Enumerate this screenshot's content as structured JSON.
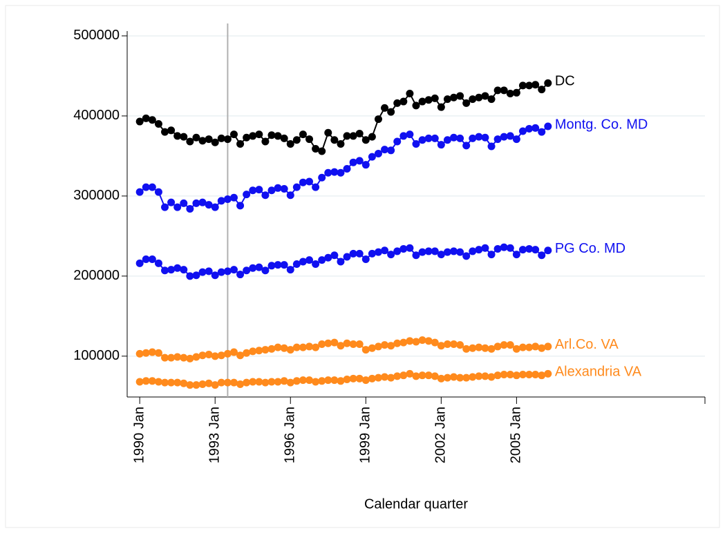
{
  "chart_data": {
    "type": "line",
    "x_title": "Calendar quarter",
    "x": [
      120,
      121,
      122,
      123,
      124,
      125,
      126,
      127,
      128,
      129,
      130,
      131,
      132,
      133,
      134,
      135,
      136,
      137,
      138,
      139,
      140,
      141,
      142,
      143,
      144,
      145,
      146,
      147,
      148,
      149,
      150,
      151,
      152,
      153,
      154,
      155,
      156,
      157,
      158,
      159,
      160,
      161,
      162,
      163,
      164,
      165,
      166,
      167,
      168,
      169,
      170,
      171,
      172,
      173,
      174,
      175,
      176,
      177,
      178,
      179,
      180,
      181,
      182,
      183,
      184,
      185
    ],
    "xlim": [
      118,
      210
    ],
    "xticks": [
      {
        "value": 120,
        "label": "1990 Jan"
      },
      {
        "value": 132,
        "label": "1993 Jan"
      },
      {
        "value": 144,
        "label": "1996 Jan"
      },
      {
        "value": 156,
        "label": "1999 Jan"
      },
      {
        "value": 168,
        "label": "2002 Jan"
      },
      {
        "value": 180,
        "label": "2005 Jan"
      }
    ],
    "ylim": [
      49000,
      506000
    ],
    "yticks": [
      100000,
      200000,
      300000,
      400000,
      500000
    ],
    "grid": true,
    "reference_line_x": 134,
    "reference_line_color": "#b0b0b0",
    "series": [
      {
        "name": "DC",
        "color": "#000000",
        "values": [
          393000,
          397000,
          395000,
          390000,
          380000,
          382000,
          375000,
          374000,
          368000,
          373000,
          369000,
          371000,
          367000,
          372000,
          371000,
          377000,
          365000,
          373000,
          375000,
          377000,
          368000,
          376000,
          375000,
          372000,
          365000,
          370000,
          377000,
          371000,
          359000,
          356000,
          379000,
          370000,
          365000,
          375000,
          375000,
          378000,
          370000,
          374000,
          396000,
          410000,
          405000,
          416000,
          418000,
          428000,
          413000,
          418000,
          420000,
          422000,
          411000,
          421000,
          423000,
          425000,
          416000,
          421000,
          423000,
          425000,
          421000,
          432000,
          432000,
          428000,
          429000,
          438000,
          438000,
          439000,
          433000,
          441000
        ]
      },
      {
        "name": "Montg. Co. MD",
        "color": "#1010f0",
        "values": [
          305000,
          311000,
          311000,
          305000,
          286000,
          292000,
          286000,
          291000,
          284000,
          291000,
          292000,
          289000,
          286000,
          294000,
          296000,
          298000,
          288000,
          302000,
          307000,
          308000,
          301000,
          307000,
          310000,
          309000,
          301000,
          311000,
          317000,
          318000,
          311000,
          323000,
          329000,
          330000,
          329000,
          334000,
          342000,
          344000,
          339000,
          349000,
          353000,
          358000,
          357000,
          368000,
          375000,
          377000,
          365000,
          370000,
          372000,
          372000,
          364000,
          370000,
          373000,
          372000,
          363000,
          372000,
          374000,
          373000,
          362000,
          371000,
          374000,
          375000,
          371000,
          381000,
          384000,
          385000,
          380000,
          387000
        ]
      },
      {
        "name": "PG Co. MD",
        "color": "#1010f0",
        "values": [
          216000,
          221000,
          221000,
          216000,
          207000,
          208000,
          210000,
          208000,
          200000,
          201000,
          205000,
          206000,
          201000,
          205000,
          206000,
          208000,
          202000,
          207000,
          210000,
          211000,
          207000,
          213000,
          214000,
          214000,
          208000,
          215000,
          218000,
          220000,
          215000,
          220000,
          223000,
          226000,
          218000,
          224000,
          228000,
          228000,
          221000,
          228000,
          230000,
          232000,
          227000,
          231000,
          234000,
          235000,
          226000,
          230000,
          231000,
          231000,
          227000,
          230000,
          231000,
          230000,
          225000,
          231000,
          233000,
          235000,
          227000,
          234000,
          236000,
          235000,
          227000,
          233000,
          234000,
          233000,
          226000,
          232000
        ]
      },
      {
        "name": "Arl.Co. VA",
        "color": "#ff8a1c",
        "values": [
          103000,
          104000,
          105000,
          104000,
          98000,
          98000,
          99000,
          98000,
          97000,
          99000,
          101000,
          102000,
          100000,
          101000,
          103000,
          105000,
          101000,
          104000,
          106000,
          107000,
          108000,
          109000,
          111000,
          110000,
          108000,
          111000,
          111000,
          112000,
          111000,
          115000,
          116000,
          117000,
          113000,
          116000,
          115000,
          115000,
          108000,
          110000,
          112000,
          114000,
          113000,
          116000,
          117000,
          119000,
          118000,
          120000,
          119000,
          117000,
          113000,
          115000,
          115000,
          114000,
          109000,
          110000,
          111000,
          110000,
          109000,
          112000,
          114000,
          114000,
          109000,
          111000,
          111000,
          112000,
          110000,
          112000
        ]
      },
      {
        "name": "Alexandria VA",
        "color": "#ff8a1c",
        "values": [
          68000,
          69000,
          69000,
          68000,
          67000,
          67000,
          67000,
          66000,
          64000,
          64000,
          65000,
          66000,
          64000,
          67000,
          67000,
          67000,
          65000,
          67000,
          68000,
          68000,
          67000,
          68000,
          68000,
          69000,
          67000,
          69000,
          70000,
          70000,
          68000,
          69000,
          70000,
          70000,
          69000,
          71000,
          72000,
          72000,
          70000,
          72000,
          73000,
          74000,
          73000,
          75000,
          76000,
          78000,
          75000,
          76000,
          76000,
          75000,
          72000,
          73000,
          74000,
          73000,
          73000,
          74000,
          75000,
          75000,
          74000,
          76000,
          77000,
          77000,
          76000,
          77000,
          77000,
          77000,
          76000,
          78000
        ]
      }
    ]
  }
}
